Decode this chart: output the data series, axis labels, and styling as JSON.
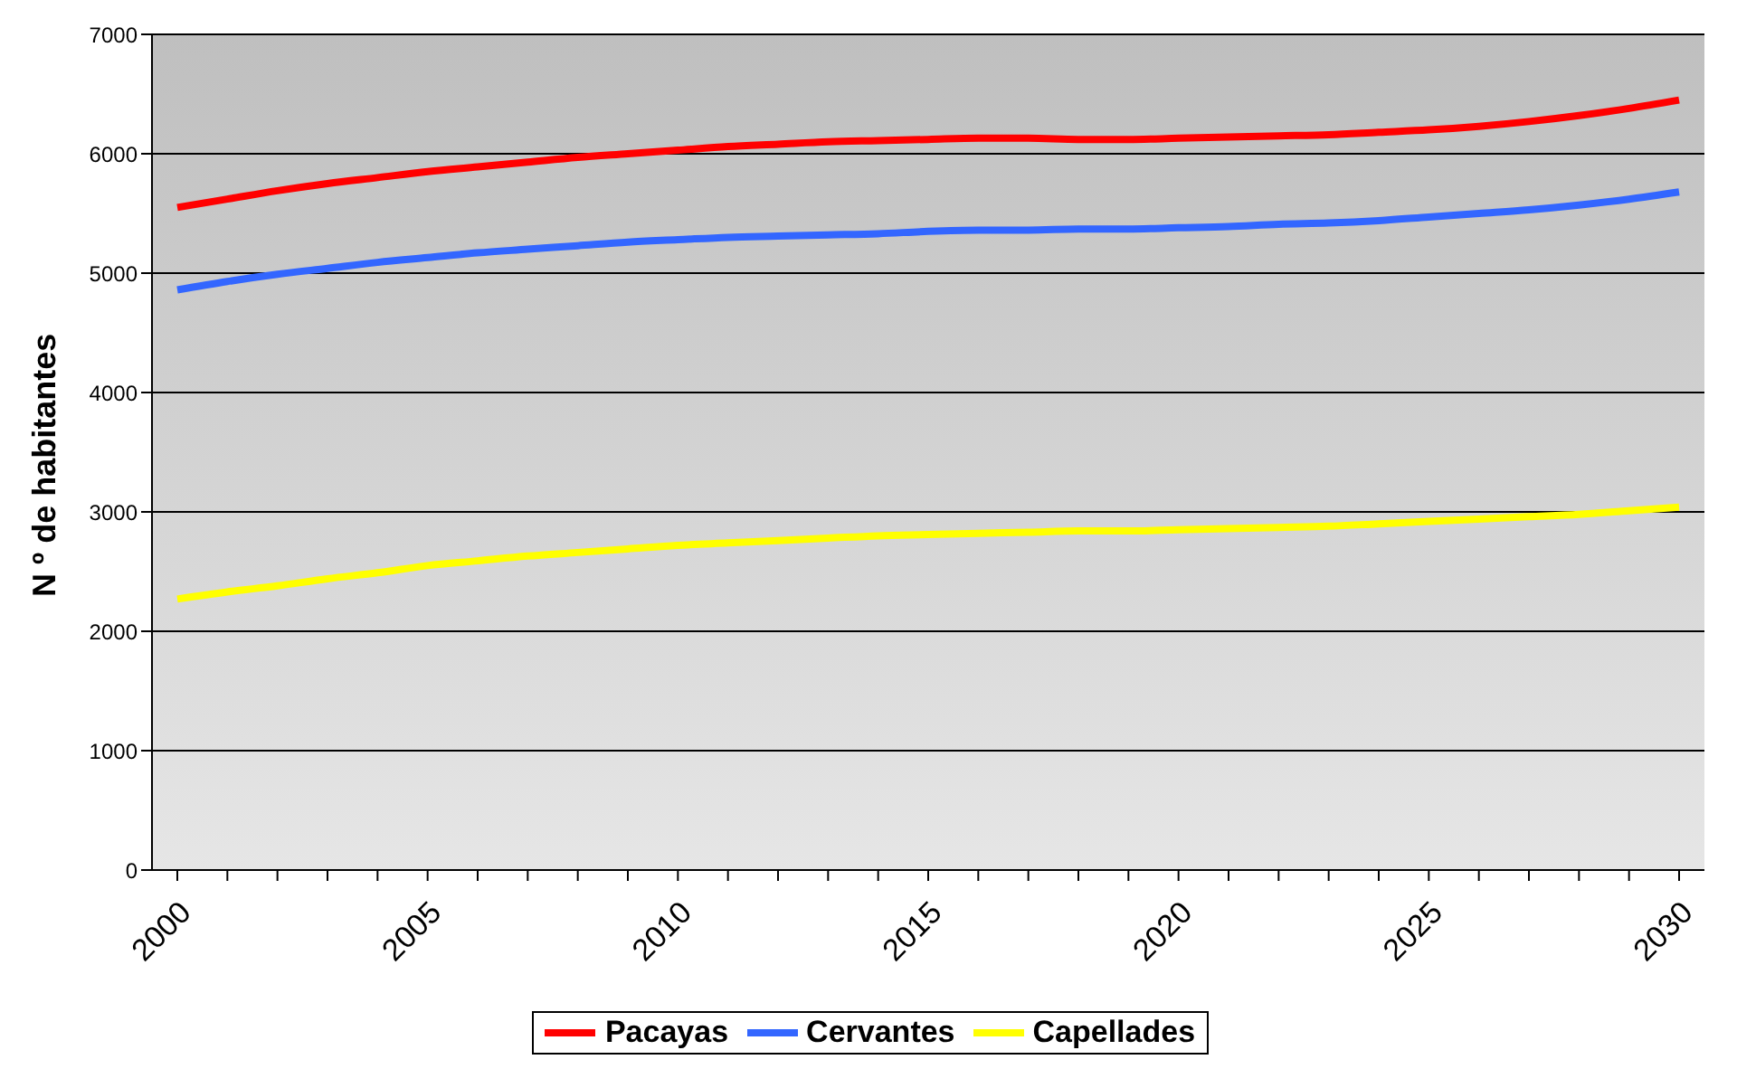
{
  "chart_data": {
    "type": "line",
    "ylabel": "N º de habitantes",
    "categories": [
      "2000",
      null,
      null,
      null,
      null,
      "2005",
      null,
      null,
      null,
      null,
      "2010",
      null,
      null,
      null,
      null,
      "2015",
      null,
      null,
      null,
      null,
      "2020",
      null,
      null,
      null,
      null,
      "2025",
      null,
      null,
      null,
      null,
      "2030"
    ],
    "series": [
      {
        "name": "Pacayas",
        "color": "#ff0000",
        "values": [
          5550,
          5620,
          5690,
          5750,
          5800,
          5850,
          5890,
          5930,
          5970,
          6000,
          6030,
          6060,
          6080,
          6100,
          6110,
          6120,
          6130,
          6130,
          6120,
          6120,
          6130,
          6140,
          6150,
          6160,
          6180,
          6200,
          6230,
          6270,
          6320,
          6380,
          6450
        ]
      },
      {
        "name": "Cervantes",
        "color": "#3366ff",
        "values": [
          4860,
          4930,
          4990,
          5040,
          5090,
          5130,
          5170,
          5200,
          5230,
          5260,
          5280,
          5300,
          5310,
          5320,
          5330,
          5350,
          5360,
          5360,
          5370,
          5370,
          5380,
          5390,
          5410,
          5420,
          5440,
          5470,
          5500,
          5530,
          5570,
          5620,
          5680
        ]
      },
      {
        "name": "Capellades",
        "color": "#ffff00",
        "values": [
          2270,
          2330,
          2380,
          2440,
          2490,
          2550,
          2590,
          2630,
          2660,
          2690,
          2720,
          2740,
          2760,
          2780,
          2800,
          2810,
          2820,
          2830,
          2840,
          2840,
          2850,
          2860,
          2870,
          2880,
          2900,
          2920,
          2940,
          2960,
          2980,
          3010,
          3040
        ]
      }
    ],
    "ylim": [
      0,
      7000
    ],
    "yticks": [
      0,
      1000,
      2000,
      3000,
      4000,
      5000,
      6000,
      7000
    ],
    "grid": "y",
    "legend": "bottom",
    "marker": "none"
  }
}
